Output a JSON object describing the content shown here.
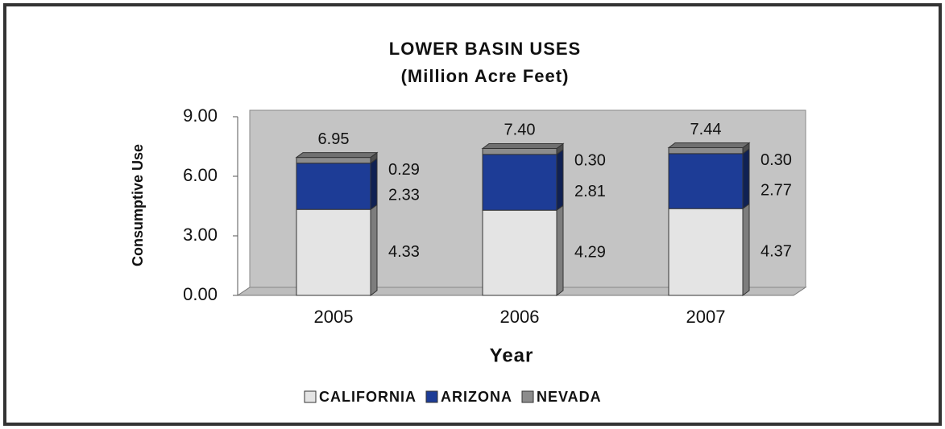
{
  "chart_data": {
    "type": "bar",
    "stacked": true,
    "title": [
      "LOWER BASIN  USES",
      "(Million  Acre Feet)"
    ],
    "x_label": "Year",
    "y_label": "Consumptive Use",
    "categories": [
      "2005",
      "2006",
      "2007"
    ],
    "series": [
      {
        "name": "CALIFORNIA",
        "color": "#e4e4e4",
        "values": [
          4.33,
          4.29,
          4.37
        ],
        "value_labels": [
          "4.33",
          "4.29",
          "4.37"
        ]
      },
      {
        "name": "ARIZONA",
        "color": "#1d3c96",
        "values": [
          2.33,
          2.81,
          2.77
        ],
        "value_labels": [
          "2.33",
          "2.81",
          "2.77"
        ]
      },
      {
        "name": "NEVADA",
        "color": "#8c8c8c",
        "values": [
          0.29,
          0.3,
          0.3
        ],
        "value_labels": [
          "0.29",
          "0.30",
          "0.30"
        ]
      }
    ],
    "totals": [
      6.95,
      7.4,
      7.44
    ],
    "total_labels": [
      "6.95",
      "7.40",
      "7.44"
    ],
    "ylim": [
      0,
      9
    ],
    "yticks": [
      {
        "value": 0,
        "label": "0.00"
      },
      {
        "value": 3,
        "label": "3.00"
      },
      {
        "value": 6,
        "label": "6.00"
      },
      {
        "value": 9,
        "label": "9.00"
      }
    ],
    "legend": "bottom"
  }
}
